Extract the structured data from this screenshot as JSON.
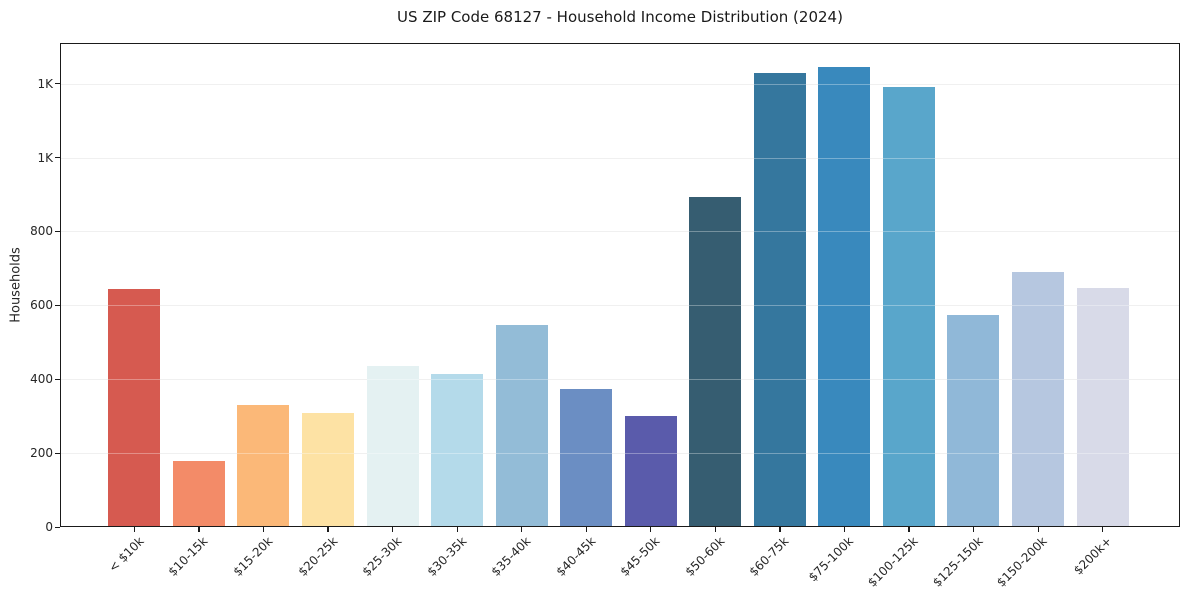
{
  "chart_data": {
    "type": "bar",
    "title": "US ZIP Code 68127 - Household Income Distribution (2024)",
    "xlabel": "",
    "ylabel": "Households",
    "categories": [
      "< $10k",
      "$10-15k",
      "$15-20k",
      "$20-25k",
      "$25-30k",
      "$30-35k",
      "$35-40k",
      "$40-45k",
      "$45-50k",
      "$50-60k",
      "$60-75k",
      "$75-100k",
      "$100-125k",
      "$125-150k",
      "$150-200k",
      "$200k+"
    ],
    "values": [
      645,
      178,
      330,
      308,
      435,
      413,
      546,
      373,
      300,
      893,
      1228,
      1244,
      1190,
      573,
      690,
      648
    ],
    "bar_colors": [
      "#d65a50",
      "#f38b68",
      "#fbb878",
      "#fde2a4",
      "#e4f1f2",
      "#b4daea",
      "#93bcd7",
      "#6b8ec3",
      "#5a5bab",
      "#365d71",
      "#35779e",
      "#3989bd",
      "#59a6cb",
      "#90b8d8",
      "#b6c7e0",
      "#d8dae8"
    ],
    "ylim": [
      0,
      1310
    ],
    "yticks": [
      {
        "value": 0,
        "label": "0"
      },
      {
        "value": 200,
        "label": "200"
      },
      {
        "value": 400,
        "label": "400"
      },
      {
        "value": 600,
        "label": "600"
      },
      {
        "value": 800,
        "label": "800"
      },
      {
        "value": 1000,
        "label": "1K"
      },
      {
        "value": 1200,
        "label": "1K"
      }
    ],
    "grid": "horizontal",
    "legend": null
  },
  "colors": {
    "background": "#ffffff",
    "spine": "#1a1a1a",
    "grid": "#e9e9e9",
    "text": "#262626"
  }
}
